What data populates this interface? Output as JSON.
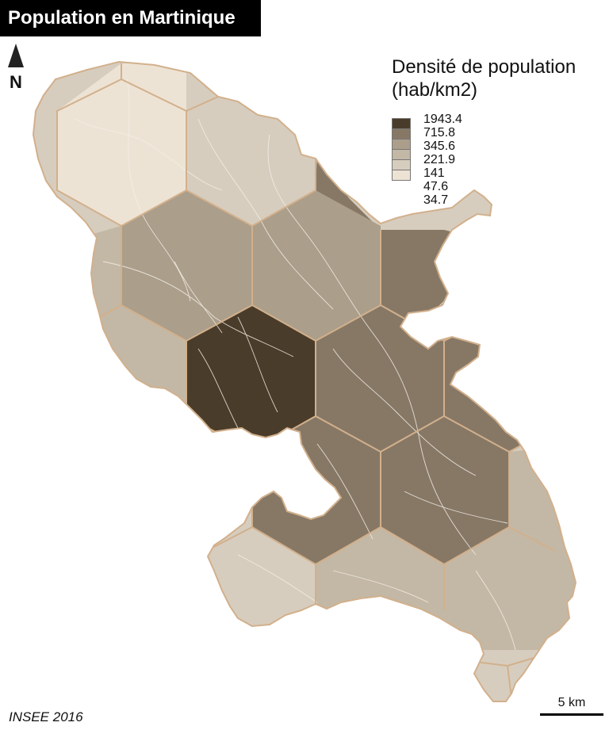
{
  "title": "Population en Martinique",
  "north_label": "N",
  "icons": {
    "north": "north-arrow-icon"
  },
  "legend": {
    "title_line1": "Densité de population",
    "title_line2": "(hab/km2)",
    "breaks": [
      "1943.4",
      "715.8",
      "345.6",
      "221.9",
      "141",
      "47.6",
      "34.7"
    ],
    "colors": [
      "#4a3c2a",
      "#877866",
      "#ab9e8a",
      "#c3b8a5",
      "#d7cdbe",
      "#ede3d4"
    ]
  },
  "source": "INSEE 2016",
  "scale_label": "5 km",
  "colors": {
    "outline": "#d2b08c",
    "roads": "#f4efe8",
    "title_bg": "#000000"
  }
}
